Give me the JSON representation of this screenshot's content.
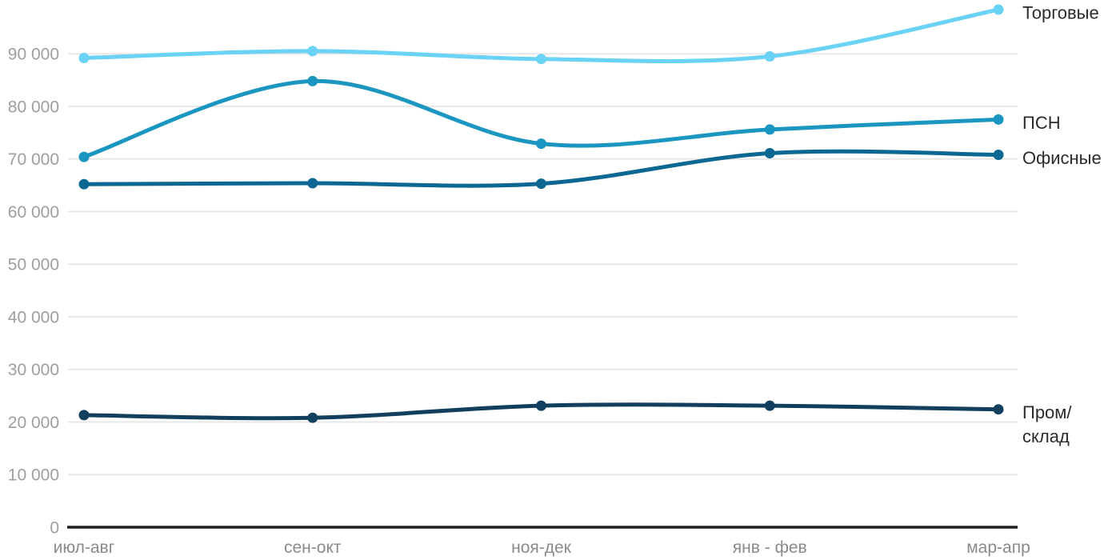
{
  "chart_data": {
    "type": "line",
    "title": "",
    "xlabel": "",
    "ylabel": "",
    "categories": [
      "июл-авг",
      "сен-окт",
      "ноя-дек",
      "янв - фев",
      "мар-апр"
    ],
    "series": [
      {
        "name": "Торговые",
        "label_lines": [
          "Торговые"
        ],
        "color": "#69D2F5",
        "values": [
          89200,
          90500,
          89000,
          89500,
          98400
        ]
      },
      {
        "name": "ПСН",
        "label_lines": [
          "ПСН"
        ],
        "color": "#1A96C0",
        "values": [
          70400,
          84800,
          72900,
          75600,
          77500
        ]
      },
      {
        "name": "Офисные",
        "label_lines": [
          "Офисные"
        ],
        "color": "#0C6892",
        "values": [
          65200,
          65400,
          65300,
          71100,
          70800
        ]
      },
      {
        "name": "Пром/склад",
        "label_lines": [
          "Пром/",
          "склад"
        ],
        "color": "#123F5E",
        "values": [
          21300,
          20800,
          23100,
          23100,
          22400
        ]
      }
    ],
    "ylim": [
      0,
      100000
    ],
    "yticks": [
      0,
      10000,
      20000,
      30000,
      40000,
      50000,
      60000,
      70000,
      80000,
      90000
    ],
    "ytick_labels": [
      "0",
      "10 000",
      "20 000",
      "30 000",
      "40 000",
      "50 000",
      "60 000",
      "70 000",
      "80 000",
      "90 000"
    ],
    "grid": true,
    "legend_position": "right-of-line-ends",
    "curve": "smooth"
  },
  "style": {
    "background": "#FFFFFF",
    "grid_color": "#E7E7E7",
    "axis_color": "#1F1F1F",
    "ytick_color": "#9E9E9E",
    "xtick_color": "#8A8A8A",
    "series_label_color": "#2B2B2B"
  }
}
